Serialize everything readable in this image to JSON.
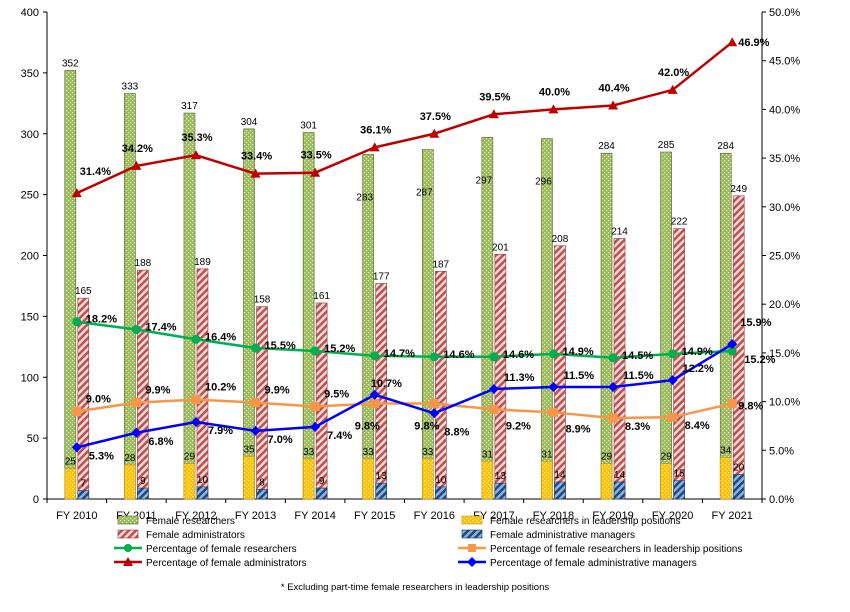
{
  "chart_data": {
    "type": "bar",
    "categories": [
      "FY 2010",
      "FY 2011",
      "FY 2012",
      "FY 2013",
      "FY 2014",
      "FY 2015",
      "FY 2016",
      "FY 2017",
      "FY 2018",
      "FY 2019",
      "FY 2020",
      "FY 2021"
    ],
    "ylim": [
      0,
      400
    ],
    "y2lim": [
      0,
      50
    ],
    "y_ticks": [
      "0",
      "50",
      "100",
      "150",
      "200",
      "250",
      "300",
      "350",
      "400"
    ],
    "y2_ticks": [
      "0.0%",
      "5.0%",
      "10.0%",
      "15.0%",
      "20.0%",
      "25.0%",
      "30.0%",
      "35.0%",
      "40.0%",
      "45.0%",
      "50.0%"
    ],
    "grid": false,
    "legend_position": "bottom",
    "bar_series": [
      {
        "name": "Female researchers",
        "values": [
          352,
          333,
          317,
          304,
          301,
          283,
          287,
          297,
          296,
          284,
          285,
          284
        ],
        "color": "#9bbb59",
        "pattern": "dots"
      },
      {
        "name": "Female administrators",
        "values": [
          165,
          188,
          189,
          158,
          161,
          177,
          187,
          201,
          208,
          214,
          222,
          249
        ],
        "color": "#d99594",
        "pattern": "diag"
      },
      {
        "name": "Female researchers in leadership positions",
        "values": [
          25,
          28,
          29,
          35,
          33,
          33,
          33,
          31,
          31,
          29,
          29,
          34
        ],
        "color": "#ffc000",
        "pattern": "dots"
      },
      {
        "name": "Female administrative managers",
        "values": [
          7,
          9,
          10,
          8,
          9,
          13,
          10,
          13,
          14,
          14,
          15,
          20
        ],
        "color": "#1f497d",
        "pattern": "diag"
      }
    ],
    "line_series": [
      {
        "name": "Percentage of female researchers",
        "values": [
          18.2,
          17.4,
          16.4,
          15.5,
          15.2,
          14.7,
          14.6,
          14.6,
          14.9,
          14.5,
          14.9,
          15.2
        ],
        "labels": [
          "18.2%",
          "17.4%",
          "16.4%",
          "15.5%",
          "15.2%",
          "14.7%",
          "14.6%",
          "14.6%",
          "14.9%",
          "14.5%",
          "14.9%",
          "15.2%"
        ],
        "color": "#00b050",
        "marker": "circle"
      },
      {
        "name": "Percentage of female researchers in leadership positions",
        "values": [
          9.0,
          9.9,
          10.2,
          9.9,
          9.5,
          9.8,
          9.8,
          9.2,
          8.9,
          8.3,
          8.4,
          9.8
        ],
        "labels": [
          "9.0%",
          "9.9%",
          "10.2%",
          "9.9%",
          "9.5%",
          "9.8%",
          "9.8%",
          "9.2%",
          "8.9%",
          "8.3%",
          "8.4%",
          "9.8%"
        ],
        "color": "#f79646",
        "marker": "square"
      },
      {
        "name": "Percentage of female administrators",
        "values": [
          31.4,
          34.2,
          35.3,
          33.4,
          33.5,
          36.1,
          37.5,
          39.5,
          40.0,
          40.4,
          42.0,
          46.9
        ],
        "labels": [
          "31.4%",
          "34.2%",
          "35.3%",
          "33.4%",
          "33.5%",
          "36.1%",
          "37.5%",
          "39.5%",
          "40.0%",
          "40.4%",
          "42.0%",
          "46.9%"
        ],
        "color": "#c00000",
        "marker": "triangle"
      },
      {
        "name": "Percentage of female administrative managers",
        "values": [
          5.3,
          6.8,
          7.9,
          7.0,
          7.4,
          10.7,
          8.8,
          11.3,
          11.5,
          11.5,
          12.2,
          15.9
        ],
        "labels": [
          "5.3%",
          "6.8%",
          "7.9%",
          "7.0%",
          "7.4%",
          "10.7%",
          "8.8%",
          "11.3%",
          "11.5%",
          "11.5%",
          "12.2%",
          "15.9%"
        ],
        "color": "#0000ff",
        "marker": "diamond"
      }
    ],
    "footnote": "* Excluding part-time female researchers in leadership positions"
  }
}
